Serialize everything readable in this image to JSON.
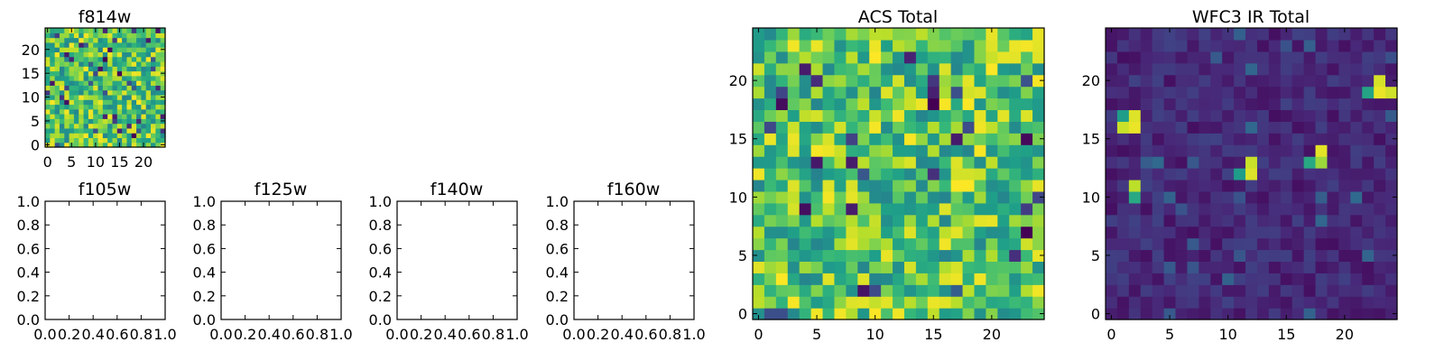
{
  "chart_data": [
    {
      "id": "f814w",
      "type": "heatmap",
      "title": "f814w",
      "grid": 25,
      "xticks": [
        "0",
        "5",
        "10",
        "15",
        "20"
      ],
      "yticks": [
        "0",
        "5",
        "10",
        "15",
        "20"
      ],
      "xlim": [
        -0.5,
        24.5
      ],
      "ylim": [
        -0.5,
        24.5
      ],
      "seed": 7,
      "style": "acs"
    },
    {
      "id": "f105w",
      "type": "empty",
      "title": "f105w",
      "xticks": [
        "0.0",
        "0.2",
        "0.4",
        "0.6",
        "0.8",
        "1.0"
      ],
      "yticks": [
        "0.0",
        "0.2",
        "0.4",
        "0.6",
        "0.8",
        "1.0"
      ],
      "xlim": [
        0,
        1
      ],
      "ylim": [
        0,
        1
      ]
    },
    {
      "id": "f125w",
      "type": "empty",
      "title": "f125w",
      "xticks": [
        "0.0",
        "0.2",
        "0.4",
        "0.6",
        "0.8",
        "1.0"
      ],
      "yticks": [
        "0.0",
        "0.2",
        "0.4",
        "0.6",
        "0.8",
        "1.0"
      ],
      "xlim": [
        0,
        1
      ],
      "ylim": [
        0,
        1
      ]
    },
    {
      "id": "f140w",
      "type": "empty",
      "title": "f140w",
      "xticks": [
        "0.0",
        "0.2",
        "0.4",
        "0.6",
        "0.8",
        "1.0"
      ],
      "yticks": [
        "0.0",
        "0.2",
        "0.4",
        "0.6",
        "0.8",
        "1.0"
      ],
      "xlim": [
        0,
        1
      ],
      "ylim": [
        0,
        1
      ]
    },
    {
      "id": "f160w",
      "type": "empty",
      "title": "f160w",
      "xticks": [
        "0.0",
        "0.2",
        "0.4",
        "0.6",
        "0.8",
        "1.0"
      ],
      "yticks": [
        "0.0",
        "0.2",
        "0.4",
        "0.6",
        "0.8",
        "1.0"
      ],
      "xlim": [
        0,
        1
      ],
      "ylim": [
        0,
        1
      ]
    },
    {
      "id": "acs-total",
      "type": "heatmap",
      "title": "ACS Total",
      "grid": 25,
      "xticks": [
        "0",
        "5",
        "10",
        "15",
        "20"
      ],
      "yticks": [
        "0",
        "5",
        "10",
        "15",
        "20"
      ],
      "xlim": [
        -0.5,
        24.5
      ],
      "ylim": [
        -0.5,
        24.5
      ],
      "seed": 31,
      "style": "acs"
    },
    {
      "id": "wfc3-ir-total",
      "type": "heatmap",
      "title": "WFC3 IR Total",
      "grid": 25,
      "xticks": [
        "0",
        "5",
        "10",
        "15",
        "20"
      ],
      "yticks": [
        "0",
        "5",
        "10",
        "15",
        "20"
      ],
      "xlim": [
        -0.5,
        24.5
      ],
      "ylim": [
        -0.5,
        24.5
      ],
      "seed": 53,
      "style": "ir",
      "hotspots": [
        {
          "x": 1,
          "y": 16,
          "v": 0.92
        },
        {
          "x": 2,
          "y": 16,
          "v": 0.97
        },
        {
          "x": 2,
          "y": 17,
          "v": 0.95
        },
        {
          "x": 1,
          "y": 17,
          "v": 0.55
        },
        {
          "x": 2,
          "y": 11,
          "v": 0.9
        },
        {
          "x": 2,
          "y": 10,
          "v": 0.6
        },
        {
          "x": 11,
          "y": 12,
          "v": 0.55
        },
        {
          "x": 12,
          "y": 12,
          "v": 0.95
        },
        {
          "x": 12,
          "y": 13,
          "v": 0.92
        },
        {
          "x": 17,
          "y": 13,
          "v": 0.6
        },
        {
          "x": 18,
          "y": 13,
          "v": 0.85
        },
        {
          "x": 18,
          "y": 14,
          "v": 0.96
        },
        {
          "x": 22,
          "y": 19,
          "v": 0.58
        },
        {
          "x": 23,
          "y": 19,
          "v": 0.97
        },
        {
          "x": 24,
          "y": 19,
          "v": 0.93
        },
        {
          "x": 23,
          "y": 20,
          "v": 0.94
        }
      ]
    }
  ]
}
